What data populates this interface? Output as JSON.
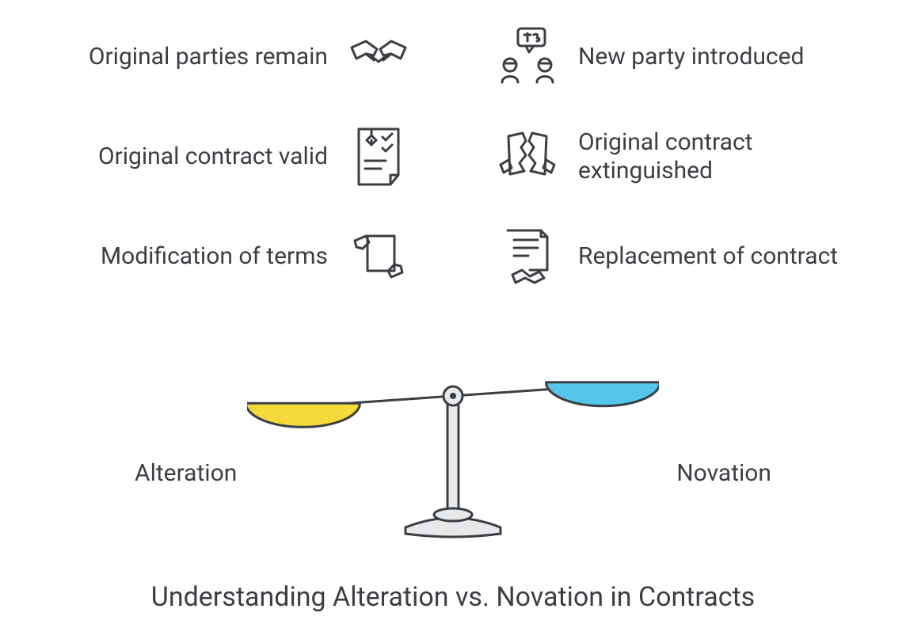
{
  "title": "Understanding Alteration vs. Novation in Contracts",
  "left": {
    "label": "Alteration",
    "items": [
      {
        "text": "Original parties remain",
        "icon": "handshake-icon"
      },
      {
        "text": "Original contract valid",
        "icon": "document-check-icon"
      },
      {
        "text": "Modification of terms",
        "icon": "edit-document-icon"
      }
    ]
  },
  "right": {
    "label": "Novation",
    "items": [
      {
        "text": "New party introduced",
        "icon": "new-party-icon"
      },
      {
        "text": "Original contract extinguished",
        "icon": "torn-document-icon"
      },
      {
        "text": "Replacement of contract",
        "icon": "replacement-contract-icon"
      }
    ]
  },
  "scale": {
    "left_pan_color": "#f6d93a",
    "right_pan_color": "#53c6ea",
    "stroke_color": "#3b3f44",
    "fill_color": "#e6e8ea",
    "stroke_width": 3,
    "tilt_deg": 4
  },
  "style": {
    "text_color": "#3b3f44",
    "background": "#ffffff",
    "item_fontsize": 30,
    "label_fontsize": 30,
    "title_fontsize": 34,
    "icon_stroke_width": 3
  }
}
